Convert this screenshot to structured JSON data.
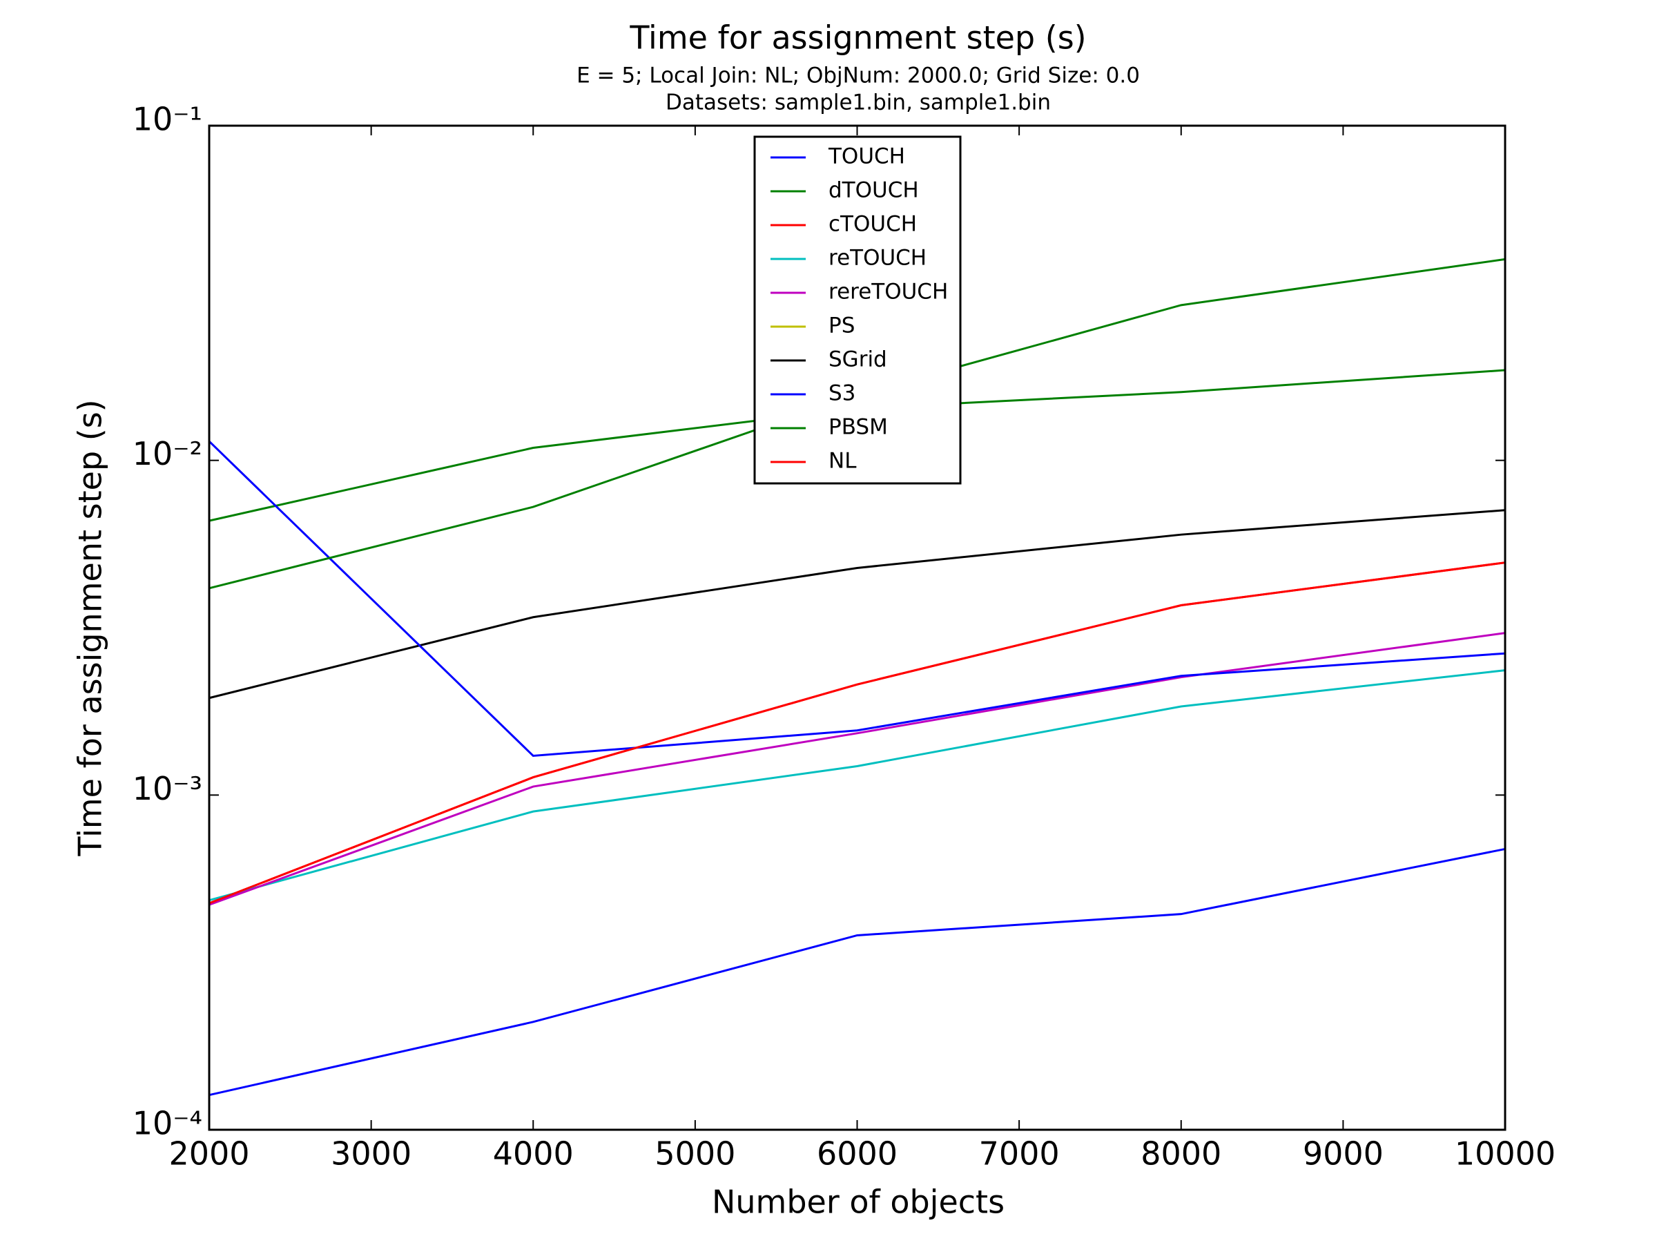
{
  "chart_data": {
    "type": "line",
    "title": "Time for assignment step (s)",
    "subtitle": [
      "E = 5; Local Join: NL; ObjNum: 2000.0; Grid Size: 0.0",
      "Datasets: sample1.bin, sample1.bin"
    ],
    "x_label": "Number of objects",
    "y_label": "Time for assignment step (s)",
    "x": [
      2000,
      4000,
      6000,
      8000,
      10000
    ],
    "xlim": [
      2000,
      10000
    ],
    "xticks": [
      2000,
      3000,
      4000,
      5000,
      6000,
      7000,
      8000,
      9000,
      10000
    ],
    "ylim": [
      0.0001,
      0.1
    ],
    "yticks": [
      {
        "value": 0.0001,
        "label": "10⁻⁴"
      },
      {
        "value": 0.001,
        "label": "10⁻³"
      },
      {
        "value": 0.01,
        "label": "10⁻²"
      },
      {
        "value": 0.1,
        "label": "10⁻¹"
      }
    ],
    "y_scale": "log",
    "legend": "upper center",
    "series": [
      {
        "name": "TOUCH",
        "color": "#0000ff",
        "values": [
          0.000127,
          0.00021,
          0.000381,
          0.000441,
          0.00069
        ]
      },
      {
        "name": "dTOUCH",
        "color": "#008000",
        "values": [
          0.0066,
          0.0109,
          0.0143,
          0.016,
          0.0186
        ]
      },
      {
        "name": "cTOUCH",
        "color": "#ff0000",
        "values": [
          0.000475,
          0.00113,
          0.00214,
          0.00369,
          0.00495
        ]
      },
      {
        "name": "reTOUCH",
        "color": "#00bfbf",
        "values": [
          0.000485,
          0.000893,
          0.00122,
          0.00184,
          0.00236
        ]
      },
      {
        "name": "rereTOUCH",
        "color": "#bf00bf",
        "values": [
          0.00047,
          0.00106,
          0.00153,
          0.00225,
          0.00305
        ]
      },
      {
        "name": "PS",
        "color": "#bfbf00",
        "values": [
          null,
          null,
          null,
          null,
          null
        ]
      },
      {
        "name": "SGrid",
        "color": "#000000",
        "values": [
          0.00195,
          0.0034,
          0.00477,
          0.006,
          0.0071
        ]
      },
      {
        "name": "S3",
        "color": "#0000ff",
        "values": [
          0.0114,
          0.00131,
          0.00156,
          0.00227,
          0.00265
        ]
      },
      {
        "name": "PBSM",
        "color": "#008000",
        "values": [
          0.00415,
          0.00726,
          0.0157,
          0.0291,
          0.0399
        ]
      },
      {
        "name": "NL",
        "color": "#ff0000",
        "values": [
          0.000475,
          0.00113,
          0.00214,
          0.00369,
          0.00495
        ]
      }
    ]
  }
}
